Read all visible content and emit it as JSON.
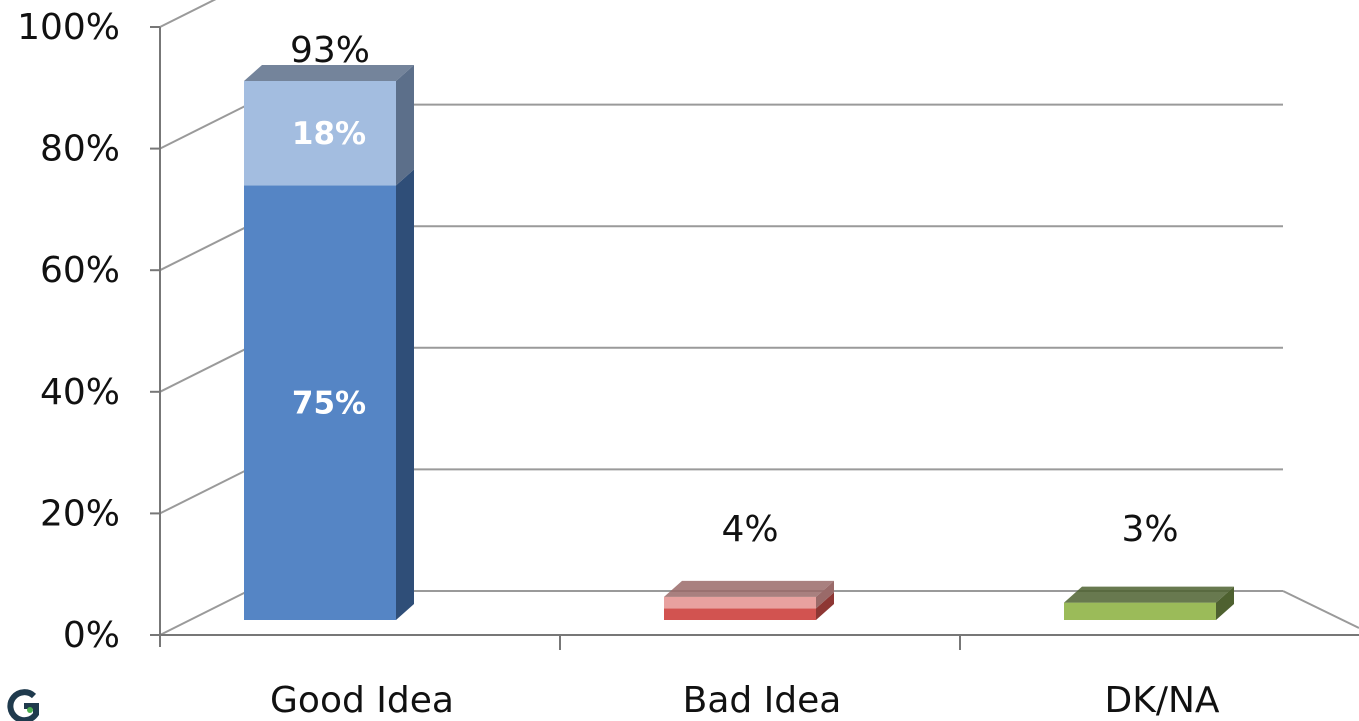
{
  "chart_data": {
    "type": "bar",
    "stacked": true,
    "three_d": true,
    "categories": [
      "Good Idea",
      "Bad Idea",
      "DK/NA"
    ],
    "ylim": [
      0,
      100
    ],
    "yticks": [
      "0%",
      "20%",
      "40%",
      "60%",
      "80%",
      "100%"
    ],
    "grid": true,
    "bars": [
      {
        "category": "Good Idea",
        "total": 93,
        "total_label": "93%",
        "segments": [
          {
            "value": 75,
            "label": "75%",
            "color": "#5585C5",
            "side_color": "#2F4E78"
          },
          {
            "value": 18,
            "label": "18%",
            "color": "#A3BDE0",
            "side_color": "#5C6F8A"
          }
        ]
      },
      {
        "category": "Bad Idea",
        "total": 4,
        "total_label": "4%",
        "segments": [
          {
            "value": 2,
            "label": "",
            "color": "#D25350",
            "side_color": "#8E3734"
          },
          {
            "value": 2,
            "label": "",
            "color": "#E8A19F",
            "side_color": "#9A6A69"
          }
        ]
      },
      {
        "category": "DK/NA",
        "total": 3,
        "total_label": "3%",
        "segments": [
          {
            "value": 3,
            "label": "",
            "color": "#9BBB59",
            "side_color": "#4E6130"
          }
        ]
      }
    ]
  }
}
